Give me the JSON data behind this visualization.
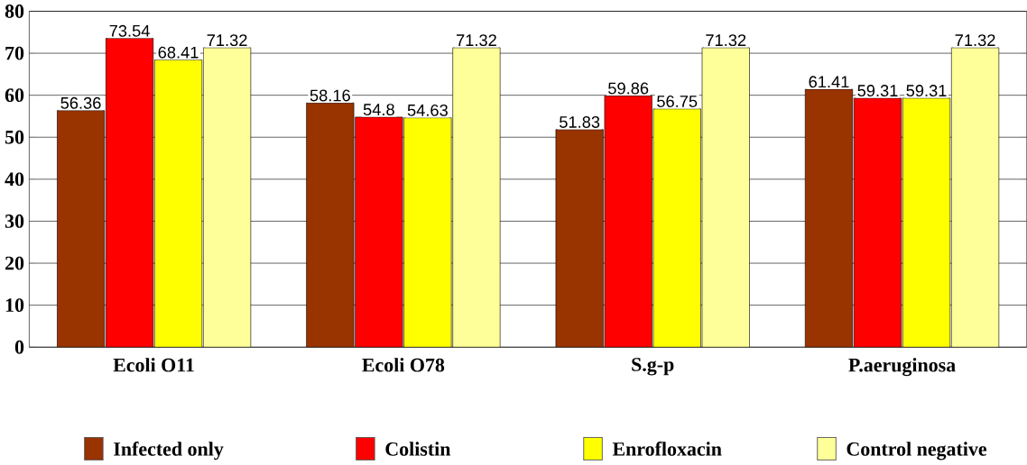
{
  "chart_data": {
    "type": "bar",
    "categories": [
      "Ecoli O11",
      "Ecoli O78",
      "S.g-p",
      "P.aeruginosa"
    ],
    "series": [
      {
        "name": "Infected only",
        "color": "#993300",
        "values": [
          56.36,
          58.16,
          51.83,
          61.41
        ]
      },
      {
        "name": "Colistin",
        "color": "#ff0000",
        "values": [
          73.54,
          54.8,
          59.86,
          59.31
        ]
      },
      {
        "name": "Enrofloxacin",
        "color": "#ffff00",
        "values": [
          68.41,
          54.63,
          56.75,
          59.31
        ]
      },
      {
        "name": "Control negative",
        "color": "#ffff99",
        "values": [
          71.32,
          71.32,
          71.32,
          71.32
        ]
      }
    ],
    "ylim": [
      0,
      80
    ],
    "yticks": [
      0,
      10,
      20,
      30,
      40,
      50,
      60,
      70,
      80
    ],
    "grid": "y",
    "legend": "bottom",
    "data_labels": true
  }
}
